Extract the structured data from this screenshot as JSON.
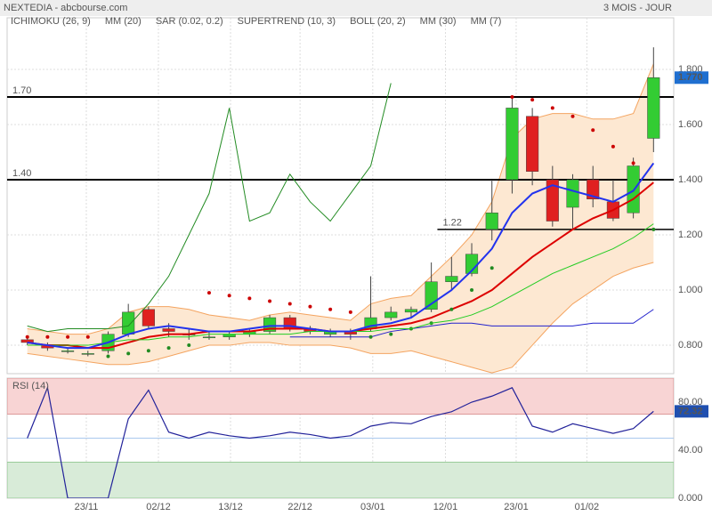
{
  "header": {
    "title": "NEXTEDIA - abcbourse.com",
    "period": "3 MOIS - JOUR"
  },
  "chart_data": [
    {
      "type": "candlestick",
      "xlim": [
        -1,
        32
      ],
      "xticks": [
        {
          "value": 2.92,
          "label": "23/11"
        },
        {
          "value": 6.49,
          "label": "02/12"
        },
        {
          "value": 10.06,
          "label": "13/12"
        },
        {
          "value": 13.5,
          "label": "22/12"
        },
        {
          "value": 17.1,
          "label": "03/01"
        },
        {
          "value": 20.7,
          "label": "12/01"
        },
        {
          "value": 24.2,
          "label": "23/01"
        },
        {
          "value": 27.7,
          "label": "01/02"
        }
      ],
      "ylim": [
        0.697,
        1.987
      ],
      "yticks": [
        {
          "value": 0.8,
          "label": "0.800"
        },
        {
          "value": 1.0,
          "label": "1.000"
        },
        {
          "value": 1.2,
          "label": "1.200"
        },
        {
          "value": 1.4,
          "label": "1.400"
        },
        {
          "value": 1.6,
          "label": "1.600"
        },
        {
          "value": 1.8,
          "label": "1.800"
        }
      ],
      "grid": true,
      "up_color": "#33cc33",
      "down_color": "#e02020",
      "ohlc": [
        [
          0.82,
          0.83,
          0.8,
          0.81
        ],
        [
          0.8,
          0.81,
          0.78,
          0.79
        ],
        [
          0.78,
          0.79,
          0.77,
          0.78
        ],
        [
          0.77,
          0.78,
          0.76,
          0.77
        ],
        [
          0.78,
          0.85,
          0.77,
          0.84
        ],
        [
          0.84,
          0.95,
          0.83,
          0.92
        ],
        [
          0.93,
          0.94,
          0.86,
          0.87
        ],
        [
          0.86,
          0.88,
          0.83,
          0.85
        ],
        [
          0.84,
          0.86,
          0.82,
          0.84
        ],
        [
          0.83,
          0.85,
          0.82,
          0.83
        ],
        [
          0.83,
          0.85,
          0.82,
          0.84
        ],
        [
          0.84,
          0.86,
          0.83,
          0.85
        ],
        [
          0.85,
          0.91,
          0.84,
          0.9
        ],
        [
          0.9,
          0.91,
          0.85,
          0.86
        ],
        [
          0.86,
          0.87,
          0.84,
          0.85
        ],
        [
          0.84,
          0.86,
          0.83,
          0.85
        ],
        [
          0.85,
          0.86,
          0.82,
          0.84
        ],
        [
          0.86,
          1.05,
          0.85,
          0.9
        ],
        [
          0.9,
          0.94,
          0.89,
          0.92
        ],
        [
          0.92,
          0.94,
          0.9,
          0.93
        ],
        [
          0.93,
          1.1,
          0.92,
          1.03
        ],
        [
          1.03,
          1.12,
          1.0,
          1.05
        ],
        [
          1.06,
          1.17,
          1.05,
          1.13
        ],
        [
          1.22,
          1.4,
          1.18,
          1.28
        ],
        [
          1.4,
          1.7,
          1.35,
          1.66
        ],
        [
          1.63,
          1.66,
          1.38,
          1.43
        ],
        [
          1.4,
          1.45,
          1.23,
          1.25
        ],
        [
          1.3,
          1.42,
          1.22,
          1.4
        ],
        [
          1.4,
          1.45,
          1.3,
          1.33
        ],
        [
          1.32,
          1.4,
          1.25,
          1.26
        ],
        [
          1.28,
          1.48,
          1.26,
          1.45
        ],
        [
          1.55,
          1.88,
          1.5,
          1.77
        ]
      ],
      "last_price": {
        "value": 1.77,
        "label": "1.770"
      },
      "levels": [
        {
          "value": 1.7,
          "label": "1.70"
        },
        {
          "value": 1.4,
          "label": "1.40"
        },
        {
          "value": 1.22,
          "label": "1.22",
          "start": 20.3
        }
      ],
      "series": [
        {
          "name": "ICHIMOKU (26, 9)",
          "color": "#2222cc",
          "values": [
            null,
            null,
            null,
            null,
            null,
            null,
            null,
            null,
            null,
            null,
            null,
            null,
            null,
            0.83,
            0.83,
            0.83,
            0.83,
            0.83,
            0.85,
            0.86,
            0.87,
            0.88,
            0.88,
            0.87,
            0.87,
            0.87,
            0.87,
            0.87,
            0.88,
            0.88,
            0.88,
            0.93
          ]
        },
        {
          "name": "MM (20)",
          "color": "#dd0000",
          "values": [
            0.81,
            0.8,
            0.8,
            0.79,
            0.79,
            0.81,
            0.83,
            0.84,
            0.84,
            0.85,
            0.85,
            0.85,
            0.86,
            0.86,
            0.86,
            0.85,
            0.85,
            0.86,
            0.87,
            0.88,
            0.9,
            0.93,
            0.96,
            1.0,
            1.06,
            1.12,
            1.17,
            1.22,
            1.26,
            1.29,
            1.33,
            1.39
          ]
        },
        {
          "name": "SAR (0.02, 0.2)",
          "color": "#cc0000",
          "style": "dots",
          "colors": {
            "above": "#cc0000",
            "below": "#228b22"
          },
          "values": [
            0.83,
            0.83,
            0.83,
            0.83,
            0.76,
            0.77,
            0.78,
            0.79,
            0.8,
            0.99,
            0.98,
            0.97,
            0.96,
            0.95,
            0.94,
            0.93,
            0.92,
            0.83,
            0.84,
            0.86,
            0.88,
            0.93,
            1.0,
            1.08,
            1.7,
            1.69,
            1.66,
            1.63,
            1.58,
            1.52,
            1.46,
            1.22
          ]
        },
        {
          "name": "SUPERTREND (10, 3)",
          "color": "#228b22",
          "values": [
            0.87,
            0.85,
            0.86,
            0.86,
            0.86,
            0.87,
            0.95,
            1.05,
            1.2,
            1.35,
            1.66,
            1.25,
            1.28,
            1.42,
            1.32,
            1.25,
            1.35,
            1.45,
            1.75,
            null,
            null,
            null,
            null,
            null,
            null,
            null,
            null,
            null,
            null,
            null,
            null,
            null
          ]
        },
        {
          "name": "BOLL (20, 2)",
          "color": "#f4a460",
          "fill": "#fde8d2",
          "upper": [
            0.86,
            0.85,
            0.84,
            0.84,
            0.86,
            0.92,
            0.94,
            0.94,
            0.93,
            0.91,
            0.9,
            0.89,
            0.91,
            0.92,
            0.91,
            0.9,
            0.89,
            0.95,
            0.97,
            0.98,
            1.05,
            1.12,
            1.2,
            1.32,
            1.55,
            1.62,
            1.64,
            1.64,
            1.62,
            1.62,
            1.64,
            1.82
          ],
          "lower": [
            0.77,
            0.76,
            0.75,
            0.74,
            0.73,
            0.73,
            0.74,
            0.76,
            0.78,
            0.8,
            0.8,
            0.81,
            0.81,
            0.8,
            0.8,
            0.8,
            0.79,
            0.77,
            0.77,
            0.78,
            0.76,
            0.74,
            0.72,
            0.7,
            0.72,
            0.8,
            0.88,
            0.95,
            1.0,
            1.05,
            1.08,
            1.1
          ]
        },
        {
          "name": "MM (30)",
          "color": "#22cc22",
          "values": [
            0.8,
            0.8,
            0.8,
            0.8,
            0.81,
            0.82,
            0.82,
            0.83,
            0.83,
            0.84,
            0.84,
            0.84,
            0.84,
            0.84,
            0.85,
            0.85,
            0.85,
            0.85,
            0.86,
            0.86,
            0.88,
            0.89,
            0.91,
            0.94,
            0.98,
            1.02,
            1.06,
            1.09,
            1.12,
            1.15,
            1.19,
            1.24
          ]
        },
        {
          "name": "MM (7)",
          "color": "#2233ee",
          "values": [
            0.81,
            0.8,
            0.79,
            0.79,
            0.81,
            0.84,
            0.86,
            0.87,
            0.86,
            0.85,
            0.85,
            0.86,
            0.87,
            0.87,
            0.86,
            0.85,
            0.85,
            0.87,
            0.88,
            0.9,
            0.95,
            1.0,
            1.07,
            1.15,
            1.28,
            1.35,
            1.38,
            1.36,
            1.34,
            1.32,
            1.36,
            1.46
          ]
        }
      ]
    },
    {
      "type": "line",
      "title": "RSI (14)",
      "color": "#22229a",
      "xlim": [
        -1,
        32
      ],
      "ylim": [
        0,
        100
      ],
      "yticks": [
        {
          "value": 0,
          "label": "0.000"
        },
        {
          "value": 40,
          "label": "40.00"
        },
        {
          "value": 80,
          "label": "80.00"
        }
      ],
      "overbought": 70,
      "oversold": 30,
      "midline": 50,
      "values": [
        50,
        92,
        0,
        0,
        0,
        66,
        90,
        55,
        50,
        55,
        52,
        50,
        52,
        55,
        53,
        50,
        52,
        60,
        63,
        62,
        68,
        72,
        80,
        85,
        92,
        60,
        55,
        62,
        58,
        54,
        58,
        72.32
      ],
      "last_value": 72.32
    }
  ]
}
